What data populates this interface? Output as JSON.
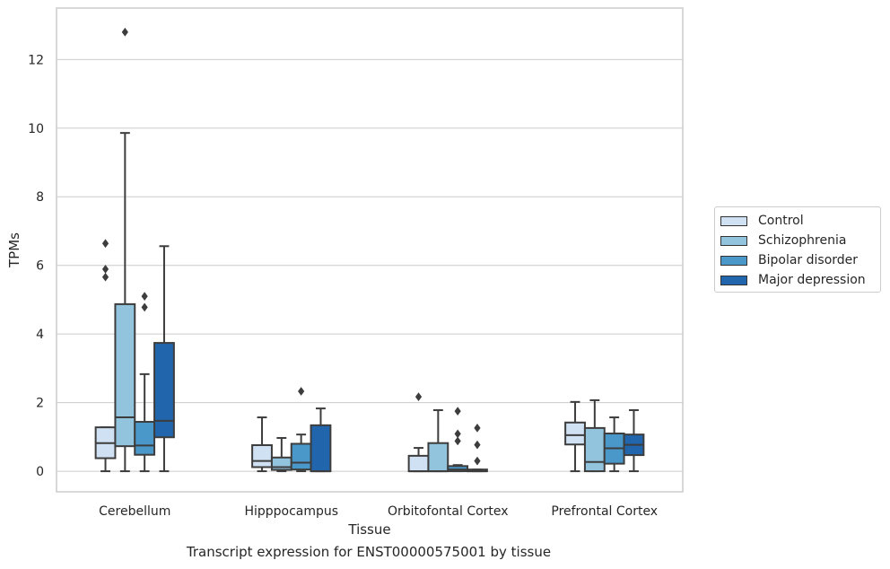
{
  "chart_data": {
    "type": "box",
    "xlabel": "Tissue",
    "ylabel": "TPMs",
    "ylim": [
      -0.6,
      13.5
    ],
    "yticks": [
      0,
      2,
      4,
      6,
      8,
      10,
      12
    ],
    "grid": "horizontal",
    "categories": [
      "Cerebellum",
      "Hipppocampus",
      "Orbitofontal Cortex",
      "Prefrontal Cortex"
    ],
    "series": [
      {
        "name": "Control",
        "color": "#cfe1f2",
        "boxes": [
          {
            "whislo": 0.0,
            "q1": 0.38,
            "med": 0.82,
            "q3": 1.28,
            "whishi": 1.28,
            "fliers": []
          },
          {
            "whislo": 0.0,
            "q1": 0.12,
            "med": 0.3,
            "q3": 0.76,
            "whishi": 1.57,
            "fliers": []
          },
          {
            "whislo": 0.0,
            "q1": 0.0,
            "med": 0.0,
            "q3": 0.45,
            "whishi": 0.68,
            "fliers": [
              2.17
            ]
          },
          {
            "whislo": 0.0,
            "q1": 0.78,
            "med": 1.05,
            "q3": 1.42,
            "whishi": 2.02,
            "fliers": []
          }
        ]
      },
      {
        "name": "Schizophrenia",
        "color": "#93c4de",
        "boxes": [
          {
            "whislo": 0.0,
            "q1": 0.73,
            "med": 1.57,
            "q3": 4.87,
            "whishi": 9.86,
            "fliers": [
              12.8
            ]
          },
          {
            "whislo": 0.0,
            "q1": 0.04,
            "med": 0.12,
            "q3": 0.4,
            "whishi": 0.97,
            "fliers": []
          },
          {
            "whislo": 0.0,
            "q1": 0.0,
            "med": 0.0,
            "q3": 0.82,
            "whishi": 1.78,
            "fliers": []
          },
          {
            "whislo": 0.0,
            "q1": 0.0,
            "med": 0.27,
            "q3": 1.26,
            "whishi": 2.07,
            "fliers": []
          }
        ]
      },
      {
        "name": "Bipolar disorder",
        "color": "#4a98c9",
        "boxes": [
          {
            "whislo": 0.0,
            "q1": 0.48,
            "med": 0.75,
            "q3": 1.44,
            "whishi": 2.83,
            "fliers": [
              5.1,
              4.78
            ]
          },
          {
            "whislo": 0.0,
            "q1": 0.05,
            "med": 0.25,
            "q3": 0.8,
            "whishi": 1.07,
            "fliers": [
              2.33
            ]
          },
          {
            "whislo": 0.0,
            "q1": 0.0,
            "med": 0.05,
            "q3": 0.15,
            "whishi": 0.18,
            "fliers": [
              1.75,
              1.09,
              0.88
            ]
          },
          {
            "whislo": 0.0,
            "q1": 0.22,
            "med": 0.67,
            "q3": 1.1,
            "whishi": 1.57,
            "fliers": []
          }
        ]
      },
      {
        "name": "Major depression",
        "color": "#2166ac",
        "boxes": [
          {
            "whislo": 0.0,
            "q1": 0.99,
            "med": 1.47,
            "q3": 3.74,
            "whishi": 6.56,
            "fliers": []
          },
          {
            "whislo": 0.0,
            "q1": 0.0,
            "med": 0.0,
            "q3": 1.34,
            "whishi": 1.83,
            "fliers": []
          },
          {
            "whislo": 0.0,
            "q1": 0.0,
            "med": 0.0,
            "q3": 0.05,
            "whishi": 0.05,
            "fliers": [
              1.26,
              0.77,
              0.3
            ]
          },
          {
            "whislo": 0.0,
            "q1": 0.47,
            "med": 0.77,
            "q3": 1.07,
            "whishi": 1.78,
            "fliers": []
          }
        ]
      }
    ],
    "extra_fliers": [
      {
        "category": "Cerebellum",
        "series": "Control",
        "values": [
          6.64,
          5.89,
          5.66
        ]
      }
    ],
    "legend_position": "right"
  },
  "caption": "Transcript expression for ENST00000575001 by tissue",
  "legend": {
    "items": [
      {
        "label": "Control",
        "color": "#cfe1f2"
      },
      {
        "label": "Schizophrenia",
        "color": "#93c4de"
      },
      {
        "label": "Bipolar disorder",
        "color": "#4a98c9"
      },
      {
        "label": "Major depression",
        "color": "#2166ac"
      }
    ]
  }
}
